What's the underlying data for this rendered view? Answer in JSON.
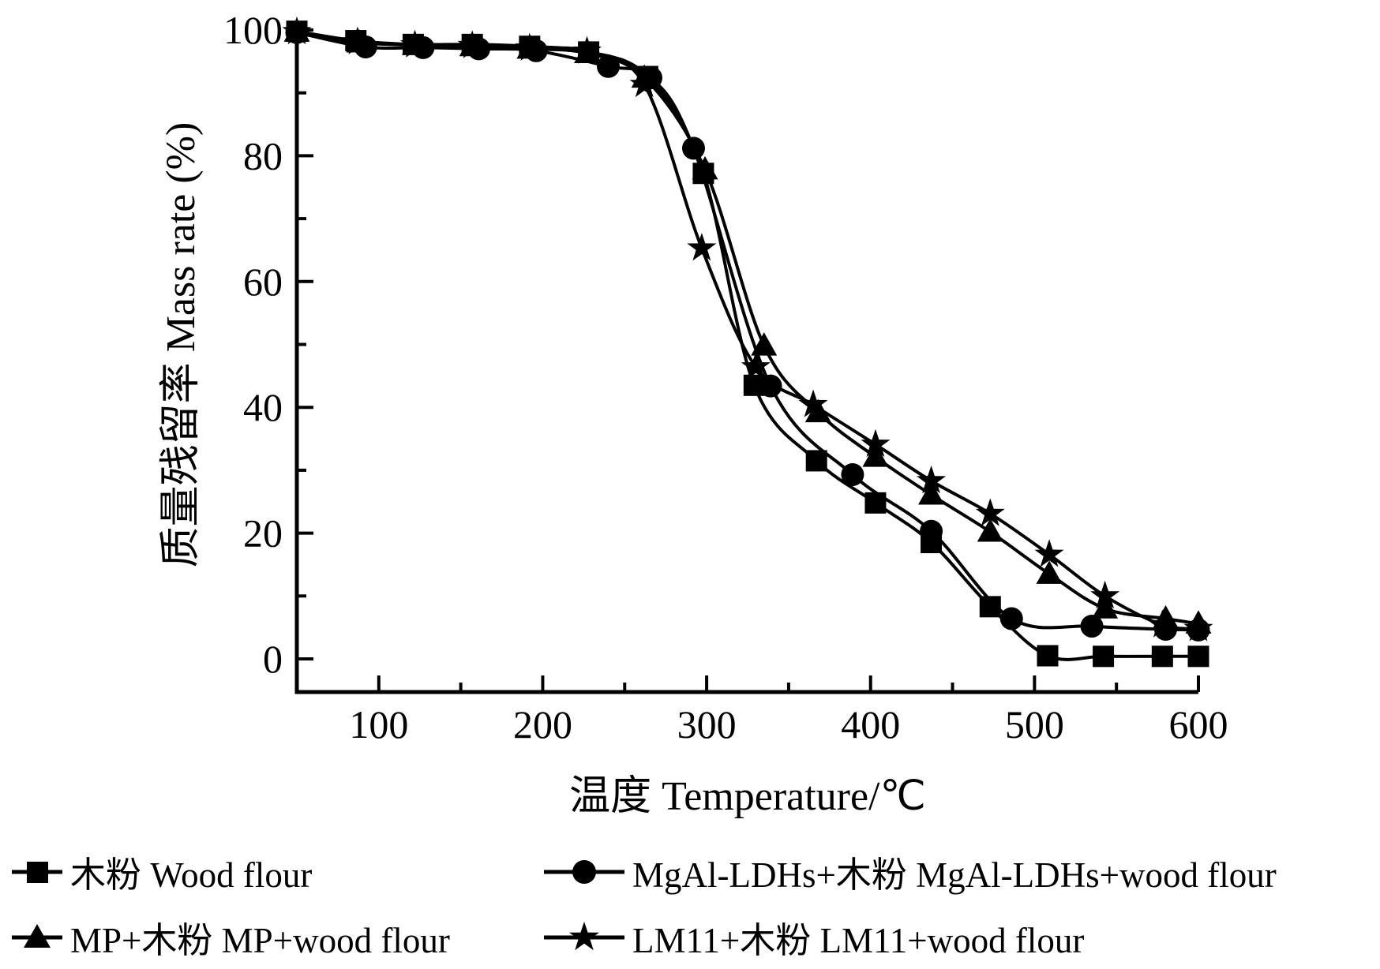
{
  "chart_data": {
    "type": "line",
    "title": "",
    "xlabel": "温度 Temperature/℃",
    "ylabel": "质量残留率 Mass rate (%)",
    "xlim": [
      50,
      600
    ],
    "ylim": [
      0,
      100
    ],
    "x_ticks": [
      100,
      200,
      300,
      400,
      500,
      600
    ],
    "x_minor_ticks": [
      150,
      250,
      350,
      450,
      550
    ],
    "y_ticks": [
      0,
      20,
      40,
      60,
      80,
      100
    ],
    "y_minor_ticks": [
      10,
      30,
      50,
      70,
      90
    ],
    "grid": false,
    "legend_position": "below-plot, two columns",
    "line_color": "#000000",
    "series": [
      {
        "name": "木粉 Wood flour",
        "marker": "square",
        "color": "#000000",
        "points": [
          [
            50,
            99.8
          ],
          [
            86,
            98.3
          ],
          [
            121,
            97.7
          ],
          [
            157,
            97.7
          ],
          [
            192,
            97.4
          ],
          [
            228,
            96.5
          ],
          [
            264,
            92.6
          ],
          [
            298,
            77.2
          ],
          [
            329,
            43.5
          ],
          [
            367,
            31.5
          ],
          [
            403,
            24.8
          ],
          [
            437,
            18.5
          ],
          [
            473,
            8.3
          ],
          [
            508,
            0.5
          ],
          [
            542,
            0.4
          ],
          [
            578,
            0.4
          ],
          [
            600,
            0.4
          ]
        ]
      },
      {
        "name": "MgAl-LDHs+木粉 MgAl-LDHs+wood flour",
        "marker": "circle",
        "color": "#000000",
        "points": [
          [
            50,
            99.6
          ],
          [
            92,
            97.3
          ],
          [
            127,
            97.2
          ],
          [
            161,
            97.0
          ],
          [
            196,
            96.7
          ],
          [
            240,
            94.2
          ],
          [
            266,
            92.4
          ],
          [
            292,
            81.2
          ],
          [
            339,
            43.4
          ],
          [
            389,
            29.3
          ],
          [
            437,
            20.3
          ],
          [
            486,
            6.4
          ],
          [
            535,
            5.2
          ],
          [
            580,
            4.7
          ],
          [
            600,
            4.6
          ]
        ]
      },
      {
        "name": "MP+木粉 MP+wood flour",
        "marker": "triangle",
        "color": "#000000",
        "points": [
          [
            50,
            99.7
          ],
          [
            88,
            98.0
          ],
          [
            122,
            97.6
          ],
          [
            157,
            97.4
          ],
          [
            192,
            97.0
          ],
          [
            227,
            96.3
          ],
          [
            262,
            92.4
          ],
          [
            299,
            77.8
          ],
          [
            335,
            49.8
          ],
          [
            368,
            39.2
          ],
          [
            403,
            32.1
          ],
          [
            437,
            26.1
          ],
          [
            473,
            20.2
          ],
          [
            509,
            13.5
          ],
          [
            543,
            8.0
          ],
          [
            580,
            6.4
          ],
          [
            600,
            5.6
          ]
        ]
      },
      {
        "name": "LM11+木粉 LM11+wood flour",
        "marker": "star",
        "color": "#000000",
        "points": [
          [
            50,
            99.7
          ],
          [
            87,
            98.1
          ],
          [
            122,
            97.6
          ],
          [
            157,
            97.5
          ],
          [
            192,
            97.1
          ],
          [
            227,
            96.6
          ],
          [
            262,
            91.3
          ],
          [
            297,
            65.3
          ],
          [
            330,
            46.4
          ],
          [
            365,
            40.4
          ],
          [
            403,
            34.1
          ],
          [
            437,
            28.3
          ],
          [
            473,
            23.1
          ],
          [
            509,
            16.6
          ],
          [
            543,
            10.0
          ],
          [
            578,
            5.4
          ],
          [
            600,
            4.8
          ]
        ]
      }
    ]
  }
}
